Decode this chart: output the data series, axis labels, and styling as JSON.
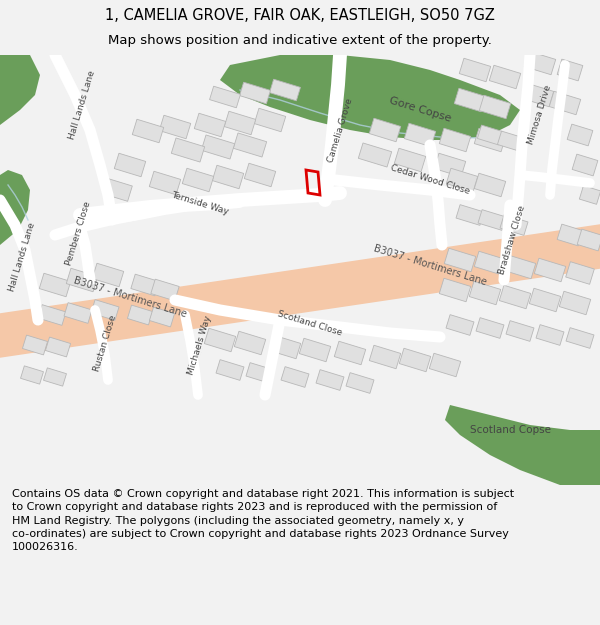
{
  "title_line1": "1, CAMELIA GROVE, FAIR OAK, EASTLEIGH, SO50 7GZ",
  "title_line2": "Map shows position and indicative extent of the property.",
  "footer_text": "Contains OS data © Crown copyright and database right 2021. This information is subject\nto Crown copyright and database rights 2023 and is reproduced with the permission of\nHM Land Registry. The polygons (including the associated geometry, namely x, y\nco-ordinates) are subject to Crown copyright and database rights 2023 Ordnance Survey\n100026316.",
  "bg_color": "#f2f2f2",
  "map_bg": "#ffffff",
  "road_color": "#f5c8a8",
  "green_color": "#6a9e5a",
  "building_color": "#e0e0e0",
  "building_outline": "#b8b8b8",
  "highlight_color": "#dd0000",
  "stream_color": "#b0d0e0",
  "title_fontsize": 10.5,
  "subtitle_fontsize": 9.5,
  "footer_fontsize": 8.0,
  "label_fontsize": 6.5
}
